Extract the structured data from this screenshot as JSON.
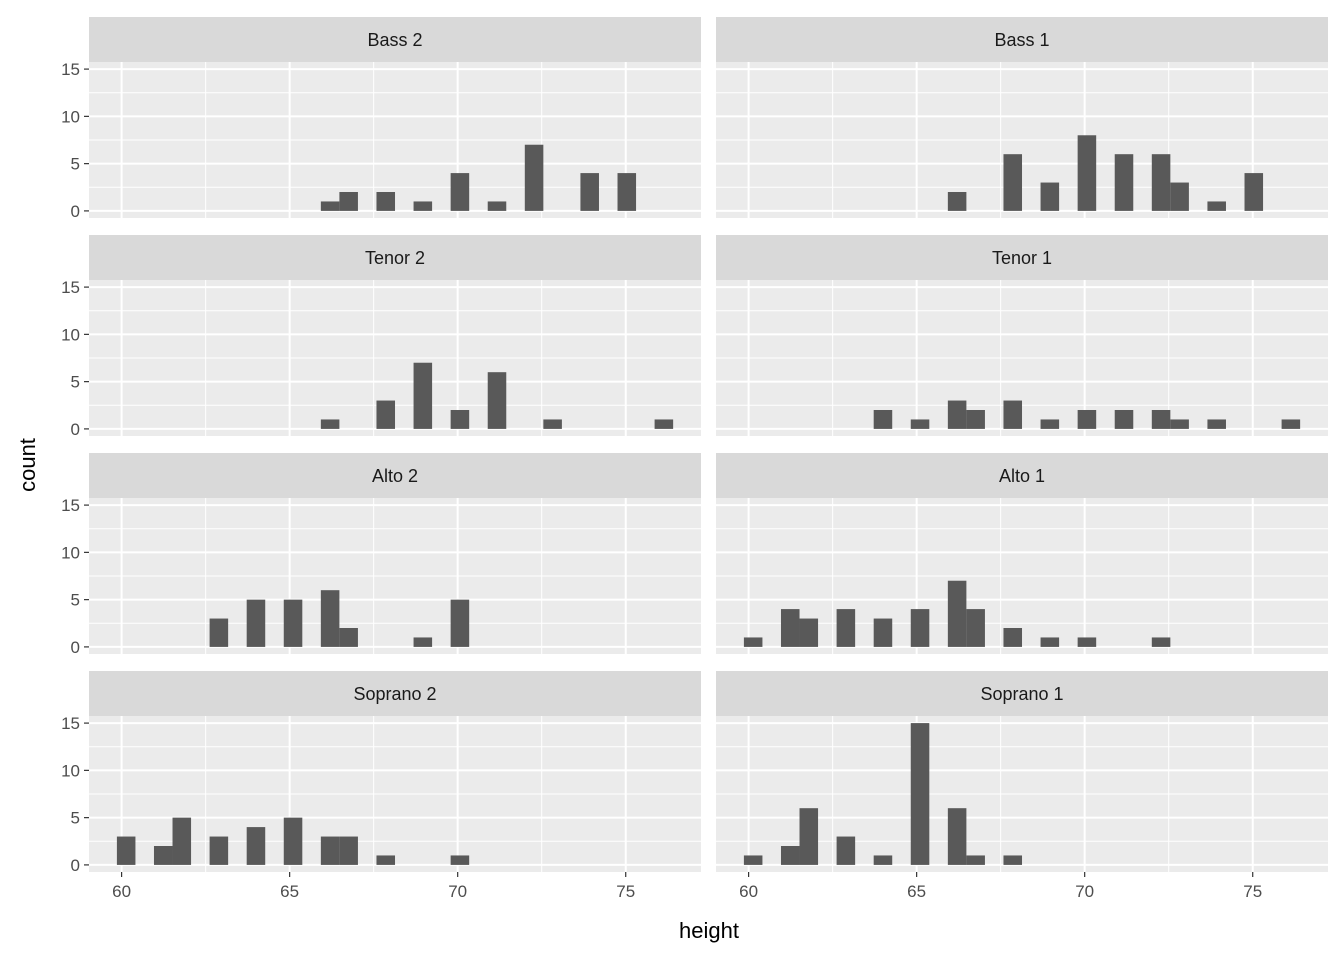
{
  "chart_data": {
    "type": "bar",
    "subtype": "faceted-histogram",
    "xlabel": "height",
    "ylabel": "count",
    "bins": 30,
    "binwidth": 0.5517,
    "x_ticks": [
      "60",
      "65",
      "70",
      "75"
    ],
    "x_tick_values": [
      60,
      65,
      70,
      75
    ],
    "y_ticks": [
      "0",
      "5",
      "10",
      "15"
    ],
    "y_tick_values": [
      0,
      5,
      10,
      15
    ],
    "xlim": [
      59.03,
      77.24
    ],
    "ylim": [
      -0.75,
      15.75
    ],
    "grid": true,
    "colors": {
      "panel": "#EBEBEB",
      "strip": "#D9D9D9",
      "bar": "#595959",
      "grid": "#FFFFFF",
      "tick": "#333333"
    },
    "facets": [
      {
        "label": "Bass 2",
        "heights": [
          66,
          67,
          68,
          69,
          70,
          71,
          72,
          74,
          75
        ],
        "counts": [
          1,
          2,
          2,
          1,
          4,
          1,
          7,
          4,
          4
        ]
      },
      {
        "label": "Bass 1",
        "heights": [
          66,
          68,
          69,
          70,
          71,
          72,
          73,
          74,
          75
        ],
        "counts": [
          2,
          6,
          3,
          8,
          6,
          6,
          3,
          1,
          4
        ]
      },
      {
        "label": "Tenor 2",
        "heights": [
          66,
          68,
          69,
          70,
          71,
          73,
          76
        ],
        "counts": [
          1,
          3,
          7,
          2,
          6,
          1,
          1
        ]
      },
      {
        "label": "Tenor 1",
        "heights": [
          64,
          65,
          66,
          67,
          68,
          69,
          70,
          71,
          72,
          73,
          74,
          76
        ],
        "counts": [
          2,
          1,
          3,
          2,
          3,
          1,
          2,
          2,
          2,
          1,
          1,
          1
        ]
      },
      {
        "label": "Alto 2",
        "heights": [
          63,
          64,
          65,
          66,
          67,
          69,
          70
        ],
        "counts": [
          3,
          5,
          5,
          6,
          2,
          1,
          5
        ]
      },
      {
        "label": "Alto 1",
        "heights": [
          60,
          61,
          62,
          63,
          64,
          65,
          66,
          67,
          68,
          69,
          70,
          72
        ],
        "counts": [
          1,
          4,
          3,
          4,
          3,
          4,
          7,
          4,
          2,
          1,
          1,
          1
        ]
      },
      {
        "label": "Soprano 2",
        "heights": [
          60,
          61,
          62,
          63,
          64,
          65,
          66,
          67,
          68,
          70
        ],
        "counts": [
          3,
          2,
          5,
          3,
          4,
          5,
          3,
          3,
          1,
          1
        ]
      },
      {
        "label": "Soprano 1",
        "heights": [
          60,
          61,
          62,
          63,
          64,
          65,
          66,
          67,
          68
        ],
        "counts": [
          1,
          2,
          6,
          3,
          1,
          15,
          6,
          1,
          1
        ]
      }
    ]
  }
}
